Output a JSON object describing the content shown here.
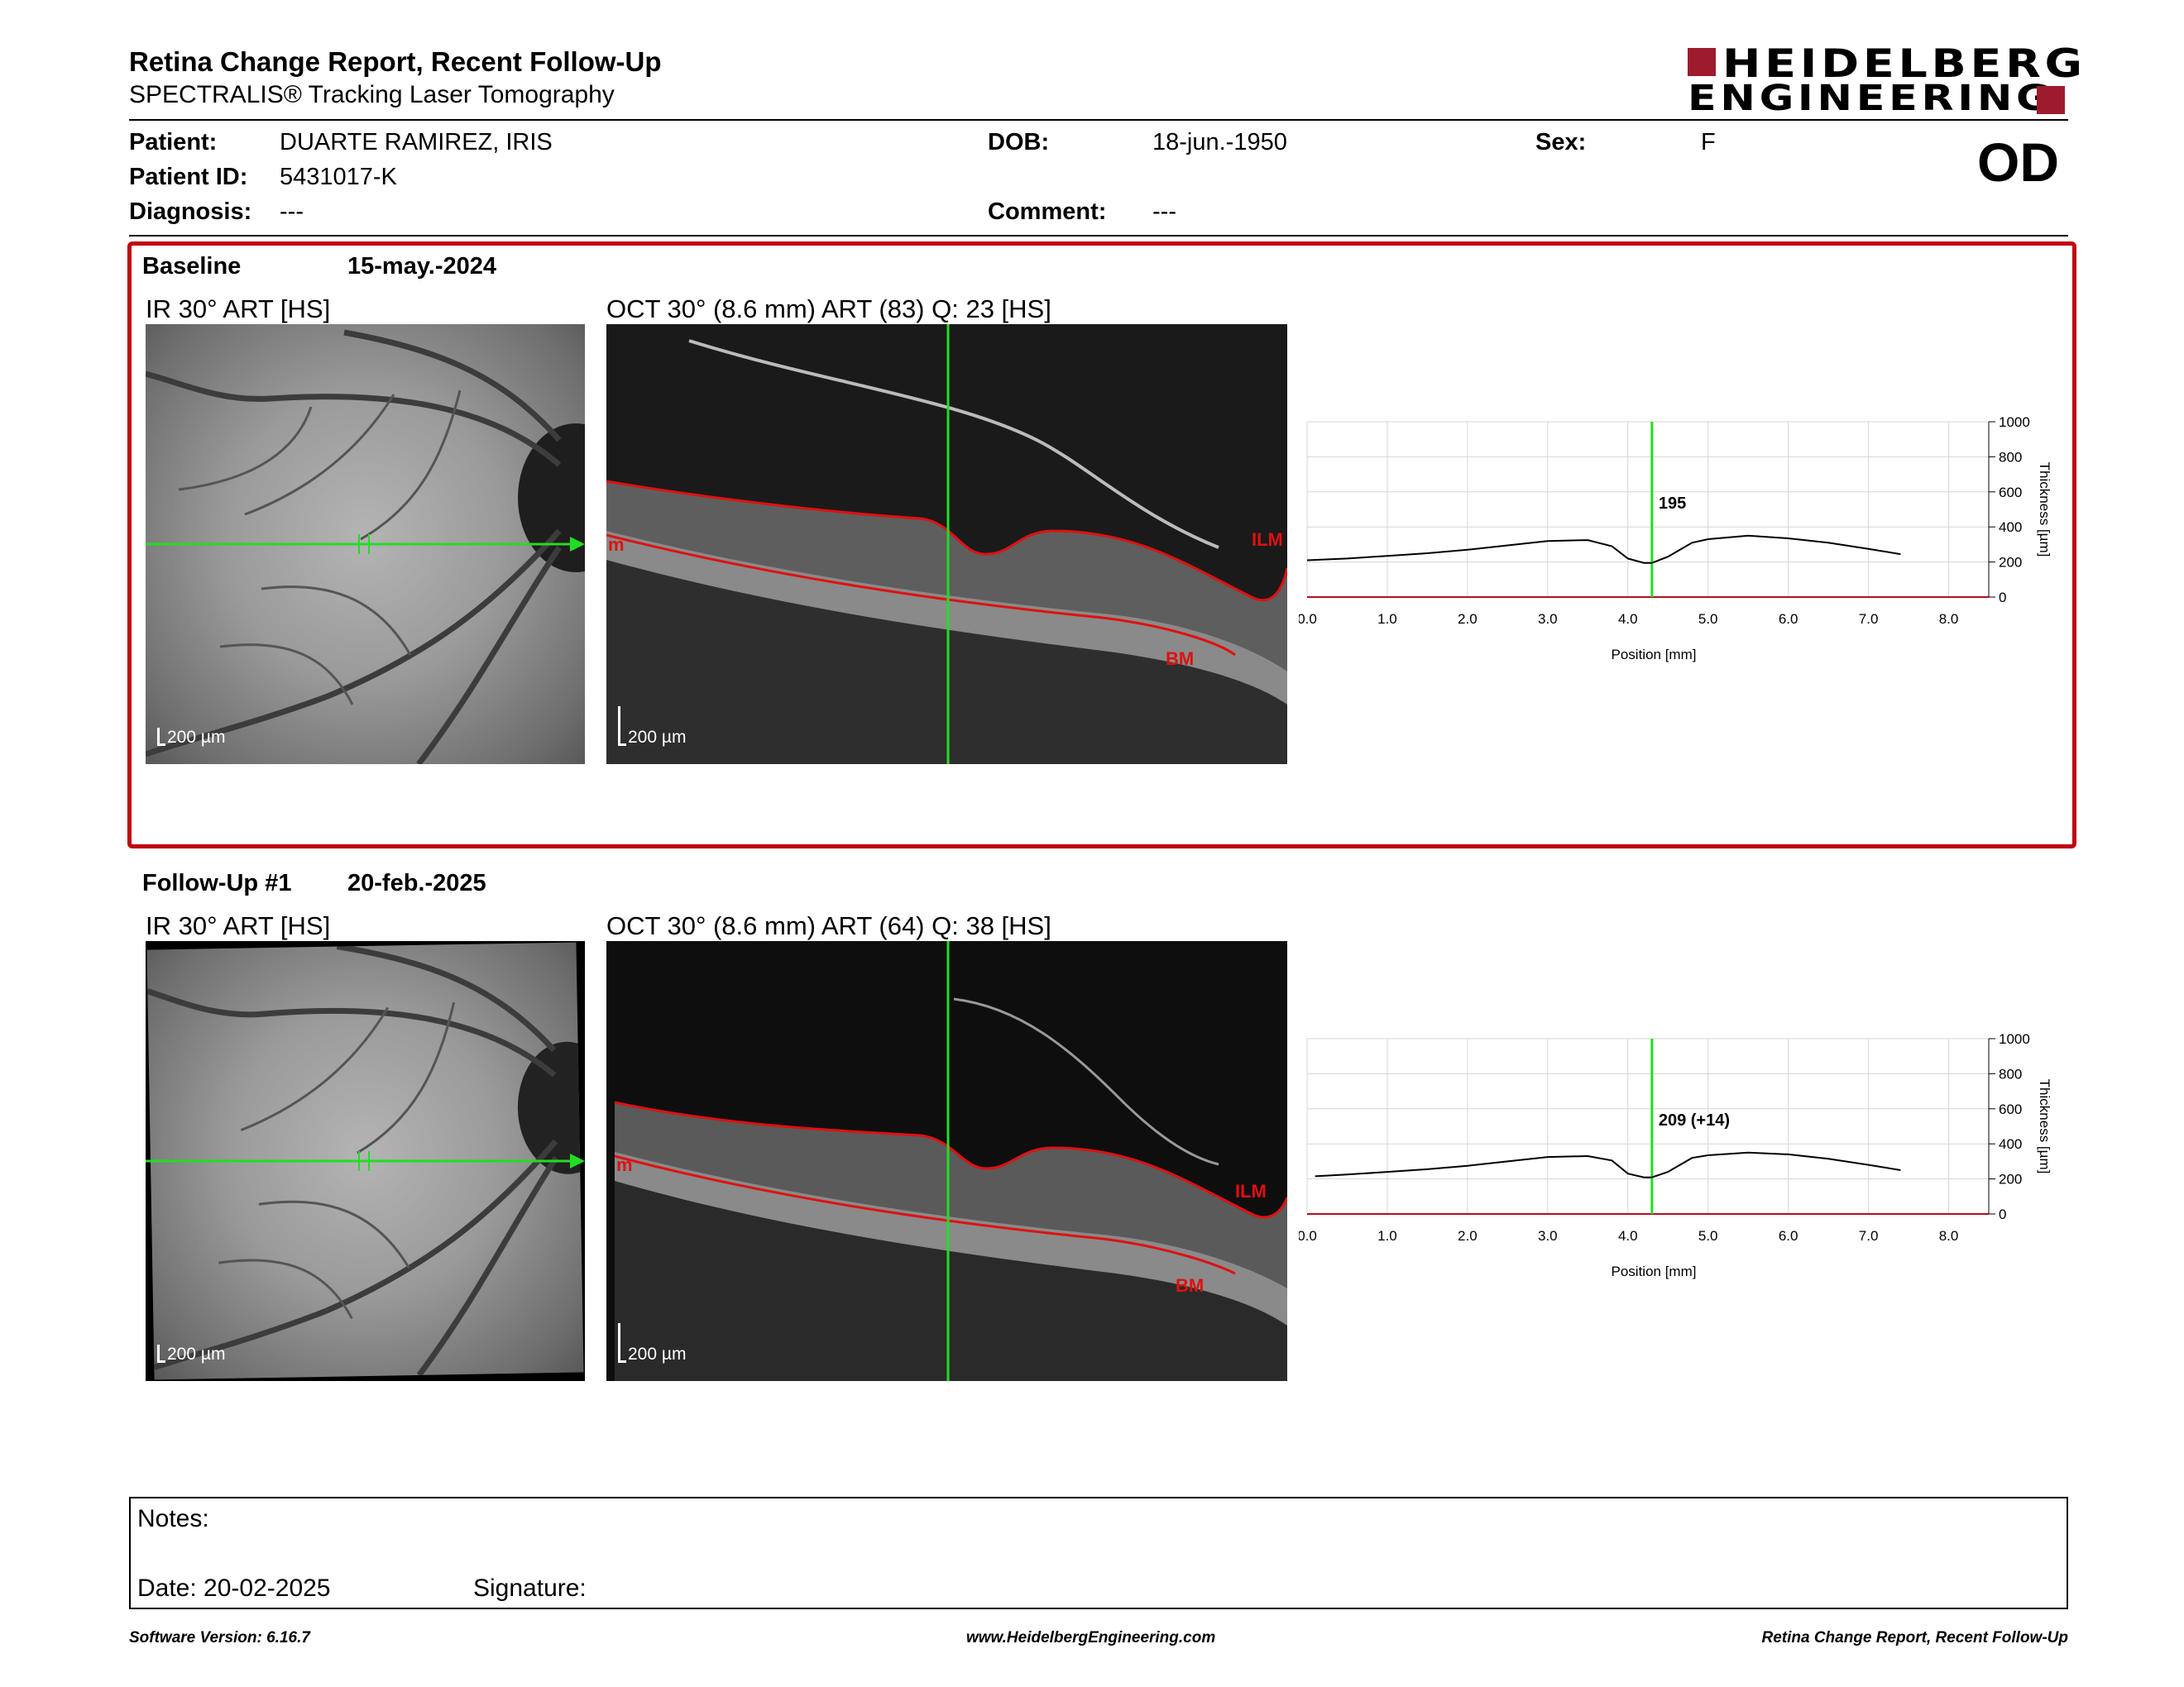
{
  "header": {
    "title": "Retina Change Report, Recent Follow-Up",
    "subtitle": "SPECTRALIS® Tracking Laser Tomography",
    "logo_line1": "HEIDELBERG",
    "logo_line2": "ENGINEERING",
    "eye": "OD"
  },
  "patient": {
    "patient_label": "Patient:",
    "patient_name": "DUARTE RAMIREZ, IRIS",
    "id_label": "Patient ID:",
    "id_value": "5431017-K",
    "diagnosis_label": "Diagnosis:",
    "diagnosis_value": "---",
    "dob_label": "DOB:",
    "dob_value": "18-jun.-1950",
    "comment_label": "Comment:",
    "comment_value": "---",
    "sex_label": "Sex:",
    "sex_value": "F"
  },
  "baseline": {
    "label": "Baseline",
    "date": "15-may.-2024",
    "ir_label": "IR 30° ART [HS]",
    "oct_label": "OCT 30° (8.6 mm) ART (83) Q: 23 [HS]",
    "scale": "200 µm",
    "ilm": "ILM",
    "bm": "BM",
    "m": "m"
  },
  "followup": {
    "label": "Follow-Up #1",
    "date": "20-feb.-2025",
    "ir_label": "IR 30° ART [HS]",
    "oct_label": "OCT 30° (8.6 mm) ART (64) Q: 38 [HS]",
    "scale": "200 µm",
    "ilm": "ILM",
    "bm": "BM",
    "m": "m"
  },
  "chart_data": [
    {
      "type": "line",
      "xlabel": "Position [mm]",
      "ylabel": "Thickness [µm]",
      "xlim": [
        0,
        8.5
      ],
      "ylim": [
        0,
        1000
      ],
      "x_ticks": [
        "0.0",
        "1.0",
        "2.0",
        "3.0",
        "4.0",
        "5.0",
        "6.0",
        "7.0",
        "8.0"
      ],
      "y_ticks": [
        "0",
        "200",
        "400",
        "600",
        "800",
        "1000"
      ],
      "marker_x": 4.3,
      "marker_label": "195",
      "grid": true,
      "series": [
        {
          "x": [
            0.0,
            0.5,
            1.0,
            1.5,
            2.0,
            2.5,
            3.0,
            3.5,
            3.8,
            4.0,
            4.2,
            4.3,
            4.5,
            4.8,
            5.0,
            5.5,
            6.0,
            6.5,
            7.0,
            7.4
          ],
          "values": [
            210,
            220,
            235,
            250,
            270,
            295,
            320,
            325,
            290,
            220,
            195,
            195,
            230,
            310,
            330,
            350,
            335,
            310,
            275,
            245
          ]
        }
      ]
    },
    {
      "type": "line",
      "xlabel": "Position [mm]",
      "ylabel": "Thickness [µm]",
      "xlim": [
        0,
        8.5
      ],
      "ylim": [
        0,
        1000
      ],
      "x_ticks": [
        "0.0",
        "1.0",
        "2.0",
        "3.0",
        "4.0",
        "5.0",
        "6.0",
        "7.0",
        "8.0"
      ],
      "y_ticks": [
        "0",
        "200",
        "400",
        "600",
        "800",
        "1000"
      ],
      "marker_x": 4.3,
      "marker_label": "209 (+14)",
      "grid": true,
      "series": [
        {
          "x": [
            0.1,
            0.5,
            1.0,
            1.5,
            2.0,
            2.5,
            3.0,
            3.5,
            3.8,
            4.0,
            4.2,
            4.3,
            4.5,
            4.8,
            5.0,
            5.5,
            6.0,
            6.5,
            7.0,
            7.4
          ],
          "values": [
            215,
            225,
            240,
            255,
            275,
            300,
            325,
            330,
            305,
            230,
            209,
            209,
            240,
            320,
            335,
            350,
            340,
            315,
            280,
            250
          ]
        }
      ]
    }
  ],
  "notes": {
    "notes_label": "Notes:",
    "date_label": "Date: 20-02-2025",
    "signature_label": "Signature:"
  },
  "footer": {
    "version": "Software Version: 6.16.7",
    "website": "www.HeidelbergEngineering.com",
    "report_name": "Retina Change Report, Recent Follow-Up"
  },
  "colors": {
    "brand_red": "#9e1b2e",
    "panel_border": "#c00010",
    "scan_line": "#22dd22",
    "segmentation": "#e01010"
  }
}
